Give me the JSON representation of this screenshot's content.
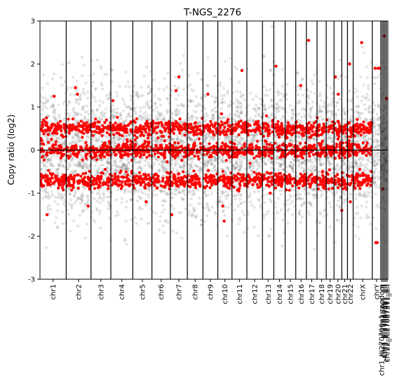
{
  "chart_data": {
    "type": "scatter",
    "title": "T-NGS_2276",
    "xlabel": "",
    "ylabel": "Copy ratio (log2)",
    "ylim": [
      -3,
      3
    ],
    "yticks": [
      -3,
      -2,
      -1,
      0,
      1,
      2,
      3
    ],
    "grid": false,
    "legend": "none",
    "reference_line_y": 0,
    "colors": {
      "bins": "#5f5f5f",
      "segments": "#ff0000",
      "frame": "#000000"
    },
    "chromosomes": [
      {
        "name": "chr1",
        "start": 0,
        "end": 37
      },
      {
        "name": "chr2",
        "start": 37,
        "end": 72
      },
      {
        "name": "chr3",
        "start": 72,
        "end": 100
      },
      {
        "name": "chr4",
        "start": 100,
        "end": 131
      },
      {
        "name": "chr5",
        "start": 131,
        "end": 158
      },
      {
        "name": "chr6",
        "start": 158,
        "end": 184
      },
      {
        "name": "chr7",
        "start": 184,
        "end": 208
      },
      {
        "name": "chr8",
        "start": 208,
        "end": 230
      },
      {
        "name": "chr9",
        "start": 230,
        "end": 251
      },
      {
        "name": "chr10",
        "start": 251,
        "end": 271
      },
      {
        "name": "chr11",
        "start": 271,
        "end": 292
      },
      {
        "name": "chr12",
        "start": 292,
        "end": 314
      },
      {
        "name": "chr13",
        "start": 314,
        "end": 330
      },
      {
        "name": "chr14",
        "start": 330,
        "end": 346
      },
      {
        "name": "chr15",
        "start": 346,
        "end": 361
      },
      {
        "name": "chr16",
        "start": 361,
        "end": 376
      },
      {
        "name": "chr17",
        "start": 376,
        "end": 391
      },
      {
        "name": "chr18",
        "start": 391,
        "end": 404
      },
      {
        "name": "chr19",
        "start": 404,
        "end": 415
      },
      {
        "name": "chr20",
        "start": 415,
        "end": 426
      },
      {
        "name": "chr21",
        "start": 426,
        "end": 434
      },
      {
        "name": "chr22",
        "start": 434,
        "end": 442
      },
      {
        "name": "chrX",
        "start": 442,
        "end": 469
      },
      {
        "name": "chrY",
        "start": 469,
        "end": 481
      },
      {
        "name": "chr1_KI270706v1_random",
        "start": 481,
        "end": 483
      },
      {
        "name": "chr3_KI270754v1_alt",
        "start": 483,
        "end": 485
      },
      {
        "name": "chr3_KI270895v1_alt",
        "start": 485,
        "end": 487
      },
      {
        "name": "chr22_KI270879v1_alt",
        "start": 487,
        "end": 489
      },
      {
        "name": "chr22_KI270878v1_alt",
        "start": 489,
        "end": 491
      }
    ],
    "x_range": [
      0,
      491
    ],
    "bin_density": 90,
    "segment_levels": [
      -0.7,
      0,
      0.5
    ],
    "segment_density": 55,
    "outlier_segments": [
      {
        "x": 20,
        "y": 1.25
      },
      {
        "x": 10,
        "y": -1.5
      },
      {
        "x": 50,
        "y": 1.45
      },
      {
        "x": 53,
        "y": 1.3
      },
      {
        "x": 68,
        "y": -1.3
      },
      {
        "x": 103,
        "y": 1.15
      },
      {
        "x": 150,
        "y": -1.2
      },
      {
        "x": 192,
        "y": 1.38
      },
      {
        "x": 196,
        "y": 1.7
      },
      {
        "x": 186,
        "y": -1.5
      },
      {
        "x": 237,
        "y": 1.3
      },
      {
        "x": 258,
        "y": -1.3
      },
      {
        "x": 260,
        "y": -1.65
      },
      {
        "x": 285,
        "y": 1.85
      },
      {
        "x": 325,
        "y": -1.0
      },
      {
        "x": 333,
        "y": 1.95
      },
      {
        "x": 368,
        "y": 1.5
      },
      {
        "x": 379,
        "y": 2.55
      },
      {
        "x": 417,
        "y": 1.7
      },
      {
        "x": 421,
        "y": 1.3
      },
      {
        "x": 437,
        "y": 2.0
      },
      {
        "x": 454,
        "y": 2.5
      },
      {
        "x": 438,
        "y": -1.2
      },
      {
        "x": 426,
        "y": -1.4
      },
      {
        "x": 474,
        "y": -2.15
      },
      {
        "x": 476,
        "y": -2.15
      },
      {
        "x": 473,
        "y": 1.9
      },
      {
        "x": 477,
        "y": 1.9
      },
      {
        "x": 479,
        "y": 1.9
      },
      {
        "x": 484,
        "y": -0.9
      },
      {
        "x": 486,
        "y": 2.65
      },
      {
        "x": 489,
        "y": 1.2
      }
    ]
  }
}
